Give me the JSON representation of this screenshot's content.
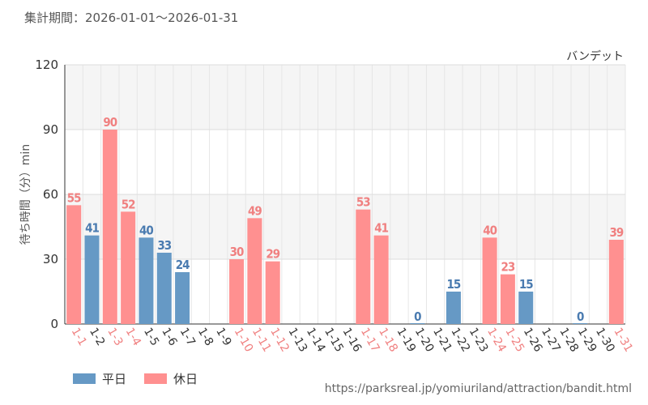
{
  "period_label": "集計期間：2026-01-01～2026-01-31",
  "attraction_name": "バンデット",
  "url": "https://parksreal.jp/yomiuriland/attraction/bandit.html",
  "colors": {
    "weekday": "#6699c5",
    "holiday": "#ff9090",
    "weekday_text": "#4a7bb0",
    "holiday_text": "#f08080"
  },
  "legend": {
    "weekday": "平日",
    "holiday": "休日"
  },
  "chart_data": {
    "type": "bar",
    "title": "",
    "xlabel": "",
    "ylabel": "待ち時間（分）min",
    "ylim": [
      0,
      120
    ],
    "yticks": [
      0,
      30,
      60,
      90,
      120
    ],
    "grid": true,
    "legend_position": "bottom-left",
    "categories": [
      "1-1",
      "1-2",
      "1-3",
      "1-4",
      "1-5",
      "1-6",
      "1-7",
      "1-8",
      "1-9",
      "1-10",
      "1-11",
      "1-12",
      "1-13",
      "1-14",
      "1-15",
      "1-16",
      "1-17",
      "1-18",
      "1-19",
      "1-20",
      "1-21",
      "1-22",
      "1-23",
      "1-24",
      "1-25",
      "1-26",
      "1-27",
      "1-28",
      "1-29",
      "1-30",
      "1-31"
    ],
    "values": [
      55,
      41,
      90,
      52,
      40,
      33,
      24,
      null,
      null,
      30,
      49,
      29,
      null,
      null,
      null,
      null,
      53,
      41,
      null,
      0,
      null,
      15,
      null,
      40,
      23,
      15,
      null,
      null,
      0,
      null,
      39
    ],
    "day_type": [
      "holiday",
      "weekday",
      "holiday",
      "holiday",
      "weekday",
      "weekday",
      "weekday",
      "weekday",
      "weekday",
      "holiday",
      "holiday",
      "holiday",
      "weekday",
      "weekday",
      "weekday",
      "weekday",
      "holiday",
      "holiday",
      "weekday",
      "weekday",
      "weekday",
      "weekday",
      "weekday",
      "holiday",
      "holiday",
      "weekday",
      "weekday",
      "weekday",
      "weekday",
      "weekday",
      "holiday"
    ],
    "series": [
      {
        "name": "平日",
        "key": "weekday"
      },
      {
        "name": "休日",
        "key": "holiday"
      }
    ]
  }
}
